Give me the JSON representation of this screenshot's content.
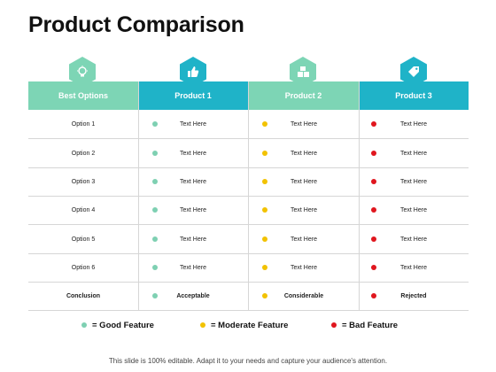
{
  "title": "Product Comparison",
  "colors": {
    "green_header": "#7dd5b5",
    "teal_header": "#1fb3c8",
    "good": "#7ed0b2",
    "moderate": "#f2c200",
    "bad": "#e0161e"
  },
  "columns": [
    {
      "label": "Best Options",
      "icon": "lightbulb-icon"
    },
    {
      "label": "Product 1",
      "icon": "thumbs-up-icon"
    },
    {
      "label": "Product 2",
      "icon": "boxes-icon"
    },
    {
      "label": "Product 3",
      "icon": "price-tag-icon"
    }
  ],
  "rows": [
    {
      "label": "Option 1",
      "values": [
        "Text Here",
        "Text Here",
        "Text Here"
      ]
    },
    {
      "label": "Option 2",
      "values": [
        "Text Here",
        "Text Here",
        "Text Here"
      ]
    },
    {
      "label": "Option 3",
      "values": [
        "Text Here",
        "Text Here",
        "Text Here"
      ]
    },
    {
      "label": "Option 4",
      "values": [
        "Text Here",
        "Text Here",
        "Text Here"
      ]
    },
    {
      "label": "Option 5",
      "values": [
        "Text Here",
        "Text Here",
        "Text Here"
      ]
    },
    {
      "label": "Option 6",
      "values": [
        "Text Here",
        "Text Here",
        "Text Here"
      ]
    },
    {
      "label": "Conclusion",
      "values": [
        "Acceptable",
        "Considerable",
        "Rejected"
      ]
    }
  ],
  "legend": [
    {
      "label": "= Good Feature",
      "level": "good"
    },
    {
      "label": "= Moderate Feature",
      "level": "moderate"
    },
    {
      "label": "= Bad Feature",
      "level": "bad"
    }
  ],
  "footer": "This slide is 100% editable. Adapt it to your needs and capture your audience's attention."
}
